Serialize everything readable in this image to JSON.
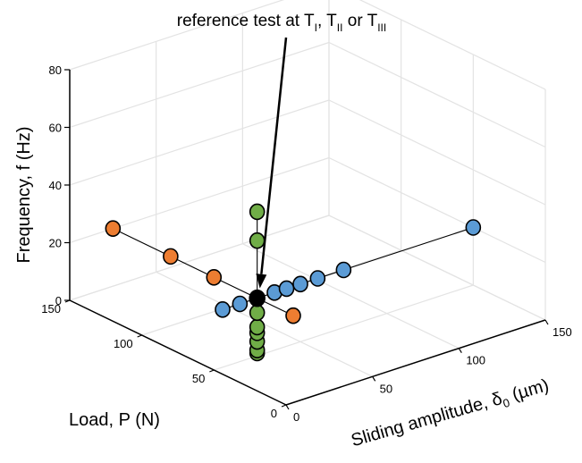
{
  "chart_data": {
    "type": "scatter",
    "projection": "3d",
    "grid": true,
    "annotation": {
      "text_main": "reference test at T",
      "sub_i": "I",
      "sep_1": ", T",
      "sub_ii": "II",
      "sep_2": " or T",
      "sub_iii": "III"
    },
    "axes": {
      "x": {
        "label_main": "Sliding amplitude, δ",
        "label_sub": "0",
        "label_unit": " (µm)",
        "range": [
          0,
          150
        ],
        "ticks": [
          0,
          50,
          100,
          150
        ]
      },
      "y": {
        "label": "Load, P (N)",
        "range": [
          0,
          150
        ],
        "ticks": [
          0,
          50,
          100,
          150
        ]
      },
      "z": {
        "label": "Frequency, f (Hz)",
        "range": [
          0,
          80
        ],
        "ticks": [
          0,
          20,
          40,
          60,
          80
        ]
      }
    },
    "reference_point": {
      "x": 25,
      "y": 50,
      "z": 20,
      "color": "#000000"
    },
    "series": [
      {
        "key": "sliding",
        "color": "#5b9bd5",
        "points": [
          {
            "x": 5,
            "y": 50,
            "z": 20
          },
          {
            "x": 15,
            "y": 50,
            "z": 20
          },
          {
            "x": 35,
            "y": 50,
            "z": 20
          },
          {
            "x": 42,
            "y": 50,
            "z": 20
          },
          {
            "x": 50,
            "y": 50,
            "z": 20
          },
          {
            "x": 60,
            "y": 50,
            "z": 20
          },
          {
            "x": 75,
            "y": 50,
            "z": 20
          },
          {
            "x": 150,
            "y": 50,
            "z": 20
          }
        ]
      },
      {
        "key": "load",
        "color": "#ed7d31",
        "points": [
          {
            "x": 25,
            "y": 150,
            "z": 20
          },
          {
            "x": 25,
            "y": 110,
            "z": 20
          },
          {
            "x": 25,
            "y": 80,
            "z": 20
          },
          {
            "x": 25,
            "y": 25,
            "z": 20
          }
        ]
      },
      {
        "key": "frequency",
        "color": "#70ad47",
        "points": [
          {
            "x": 25,
            "y": 50,
            "z": 1
          },
          {
            "x": 25,
            "y": 50,
            "z": 2
          },
          {
            "x": 25,
            "y": 50,
            "z": 5
          },
          {
            "x": 25,
            "y": 50,
            "z": 8
          },
          {
            "x": 25,
            "y": 50,
            "z": 10
          },
          {
            "x": 25,
            "y": 50,
            "z": 15
          },
          {
            "x": 25,
            "y": 50,
            "z": 40
          },
          {
            "x": 25,
            "y": 50,
            "z": 50
          }
        ]
      }
    ]
  }
}
